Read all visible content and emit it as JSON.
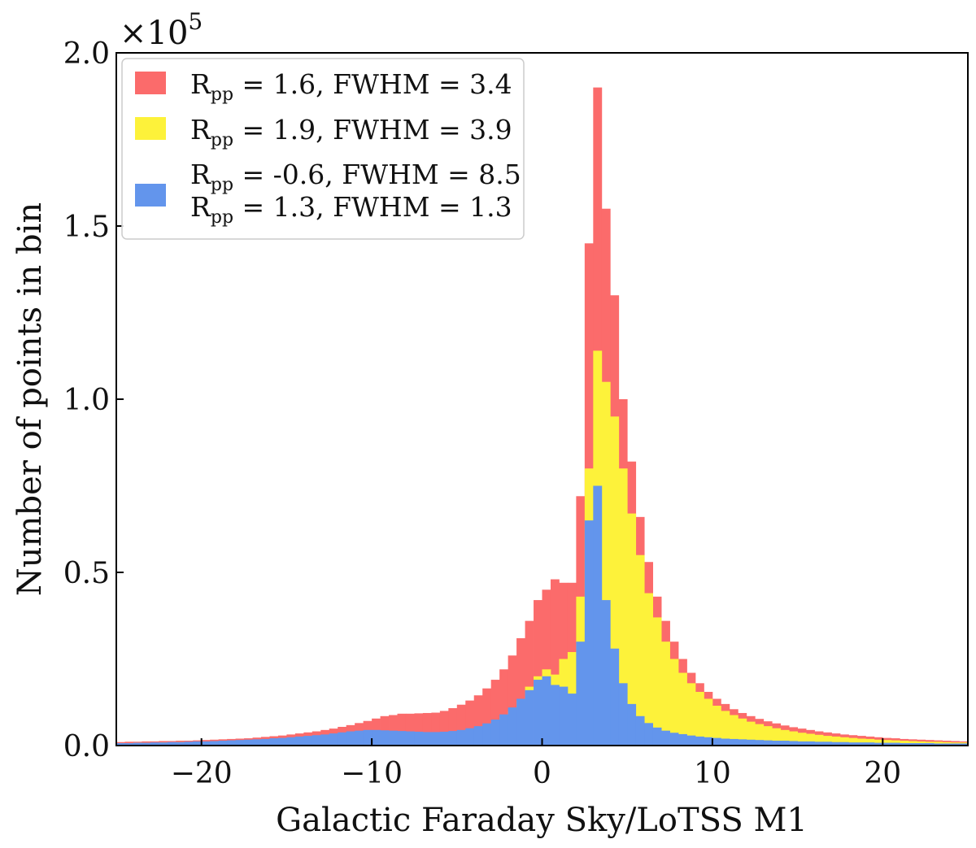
{
  "chart_data": {
    "type": "bar",
    "title": "",
    "xlabel": "Galactic Faraday Sky/LoTSS M1",
    "ylabel": "Number of points in bin",
    "y_multiplier_label": "×10",
    "y_multiplier_exponent": "5",
    "xlim": [
      -25,
      25
    ],
    "ylim": [
      0,
      2.0
    ],
    "x_ticks": [
      -20,
      -10,
      0,
      10,
      20
    ],
    "x_tick_labels": [
      "−20",
      "−10",
      "0",
      "10",
      "20"
    ],
    "y_ticks": [
      0.0,
      0.5,
      1.0,
      1.5,
      2.0
    ],
    "y_tick_labels": [
      "0.0",
      "0.5",
      "1.0",
      "1.5",
      "2.0"
    ],
    "bin_width": 0.5,
    "bin_start": -25,
    "legend_position": "top-left",
    "series": [
      {
        "name": "R_pp = 1.6, FWHM = 3.4",
        "legend_lines": [
          [
            "R",
            "pp",
            " = 1.6,  FWHM = 3.4"
          ]
        ],
        "color": "#fb6b6b",
        "values": [
          0.01,
          0.011,
          0.011,
          0.012,
          0.012,
          0.013,
          0.013,
          0.014,
          0.014,
          0.015,
          0.016,
          0.017,
          0.018,
          0.019,
          0.02,
          0.021,
          0.023,
          0.025,
          0.027,
          0.029,
          0.032,
          0.035,
          0.038,
          0.041,
          0.045,
          0.049,
          0.054,
          0.059,
          0.065,
          0.071,
          0.078,
          0.085,
          0.088,
          0.092,
          0.092,
          0.093,
          0.094,
          0.095,
          0.1,
          0.108,
          0.118,
          0.13,
          0.145,
          0.165,
          0.19,
          0.22,
          0.26,
          0.31,
          0.36,
          0.42,
          0.45,
          0.48,
          0.47,
          0.47,
          0.72,
          1.45,
          1.9,
          1.55,
          1.3,
          1.0,
          0.82,
          0.66,
          0.53,
          0.43,
          0.36,
          0.3,
          0.25,
          0.21,
          0.18,
          0.155,
          0.135,
          0.12,
          0.105,
          0.094,
          0.085,
          0.077,
          0.07,
          0.064,
          0.058,
          0.053,
          0.049,
          0.045,
          0.041,
          0.038,
          0.035,
          0.032,
          0.03,
          0.028,
          0.026,
          0.024,
          0.022,
          0.021,
          0.019,
          0.018,
          0.017,
          0.016,
          0.015,
          0.014,
          0.013,
          0.012
        ]
      },
      {
        "name": "R_pp = 1.9, FWHM = 3.9",
        "legend_lines": [
          [
            "R",
            "pp",
            " = 1.9,  FWHM = 3.9"
          ]
        ],
        "color": "#fdf23a",
        "values": [
          0.007,
          0.007,
          0.008,
          0.008,
          0.008,
          0.009,
          0.009,
          0.01,
          0.01,
          0.011,
          0.011,
          0.012,
          0.013,
          0.013,
          0.014,
          0.015,
          0.016,
          0.017,
          0.018,
          0.019,
          0.021,
          0.022,
          0.024,
          0.026,
          0.028,
          0.03,
          0.033,
          0.036,
          0.039,
          0.041,
          0.042,
          0.042,
          0.041,
          0.039,
          0.036,
          0.034,
          0.033,
          0.034,
          0.035,
          0.037,
          0.04,
          0.043,
          0.047,
          0.055,
          0.065,
          0.08,
          0.1,
          0.13,
          0.17,
          0.2,
          0.22,
          0.205,
          0.25,
          0.27,
          0.43,
          0.8,
          1.14,
          1.05,
          0.95,
          0.8,
          0.67,
          0.55,
          0.44,
          0.37,
          0.3,
          0.25,
          0.21,
          0.18,
          0.155,
          0.135,
          0.115,
          0.1,
          0.088,
          0.078,
          0.069,
          0.062,
          0.056,
          0.05,
          0.045,
          0.041,
          0.037,
          0.034,
          0.031,
          0.028,
          0.026,
          0.024,
          0.022,
          0.02,
          0.019,
          0.017,
          0.016,
          0.015,
          0.014,
          0.013,
          0.012,
          0.011,
          0.011,
          0.01,
          0.009,
          0.009
        ]
      },
      {
        "name": "R_pp = -0.6, FWHM = 8.5 / R_pp = 1.3, FWHM = 1.3",
        "legend_lines": [
          [
            "R",
            "pp",
            " = -0.6, FWHM = 8.5"
          ],
          [
            "R",
            "pp",
            " = 1.3, FWHM = 1.3"
          ]
        ],
        "color": "#6395ec",
        "values": [
          0.007,
          0.007,
          0.008,
          0.008,
          0.009,
          0.009,
          0.01,
          0.01,
          0.011,
          0.012,
          0.012,
          0.013,
          0.014,
          0.015,
          0.016,
          0.017,
          0.018,
          0.019,
          0.021,
          0.022,
          0.024,
          0.026,
          0.028,
          0.03,
          0.032,
          0.035,
          0.038,
          0.041,
          0.043,
          0.045,
          0.045,
          0.044,
          0.043,
          0.042,
          0.041,
          0.04,
          0.039,
          0.039,
          0.04,
          0.042,
          0.045,
          0.05,
          0.056,
          0.064,
          0.075,
          0.09,
          0.11,
          0.135,
          0.16,
          0.19,
          0.2,
          0.175,
          0.17,
          0.15,
          0.3,
          0.65,
          0.75,
          0.42,
          0.28,
          0.18,
          0.12,
          0.085,
          0.065,
          0.052,
          0.043,
          0.037,
          0.033,
          0.029,
          0.026,
          0.024,
          0.022,
          0.02,
          0.019,
          0.018,
          0.017,
          0.016,
          0.015,
          0.014,
          0.014,
          0.013,
          0.012,
          0.012,
          0.011,
          0.011,
          0.01,
          0.01,
          0.009,
          0.009,
          0.009,
          0.008,
          0.008,
          0.008,
          0.007,
          0.007,
          0.007,
          0.007,
          0.006,
          0.006,
          0.006,
          0.006
        ]
      }
    ]
  }
}
